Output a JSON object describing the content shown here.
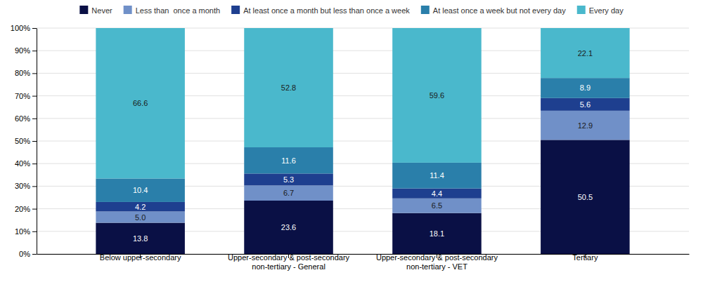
{
  "chart_data": {
    "type": "bar",
    "stacked": true,
    "categories": [
      "Below upper-secondary",
      "Upper-secondary & post-secondary\nnon-tertiary - General",
      "Upper-secondary & post-secondary\nnon-tertiary - VET",
      "Tertiary"
    ],
    "series": [
      {
        "name": "Never",
        "color": "#0a1045",
        "values": [
          13.8,
          23.6,
          18.1,
          50.5
        ],
        "value_labels": [
          "13.8",
          "23.6",
          "18.1",
          "50.5"
        ]
      },
      {
        "name": "Less than  once a month",
        "color": "#7090c8",
        "values": [
          5.0,
          6.7,
          6.5,
          12.9
        ],
        "value_labels": [
          "5.0",
          "6.7",
          "6.5",
          "12.9"
        ]
      },
      {
        "name": "At least once a month but less than once a week",
        "color": "#1e3f8f",
        "values": [
          4.2,
          5.3,
          4.4,
          5.6
        ],
        "value_labels": [
          "4.2",
          "5.3",
          "4.4",
          "5.6"
        ]
      },
      {
        "name": "At least once a week but not every day",
        "color": "#2a7faa",
        "values": [
          10.4,
          11.6,
          11.4,
          8.9
        ],
        "value_labels": [
          "10.4",
          "11.6",
          "11.4",
          "8.9"
        ]
      },
      {
        "name": "Every day",
        "color": "#4ab8cc",
        "values": [
          66.6,
          52.8,
          59.6,
          22.1
        ],
        "value_labels": [
          "66.6",
          "52.8",
          "59.6",
          "22.1"
        ]
      }
    ],
    "ylim": [
      0,
      100
    ],
    "yticks": [
      {
        "value": 0,
        "label": "0%"
      },
      {
        "value": 10,
        "label": "10%"
      },
      {
        "value": 20,
        "label": "20%"
      },
      {
        "value": 30,
        "label": "30%"
      },
      {
        "value": 40,
        "label": "40%"
      },
      {
        "value": 50,
        "label": "50%"
      },
      {
        "value": 60,
        "label": "60%"
      },
      {
        "value": 70,
        "label": "70%"
      },
      {
        "value": 80,
        "label": "80%"
      },
      {
        "value": 90,
        "label": "90%"
      },
      {
        "value": 100,
        "label": "100%"
      }
    ],
    "grid": true,
    "data_labels": true,
    "legend": "top"
  }
}
